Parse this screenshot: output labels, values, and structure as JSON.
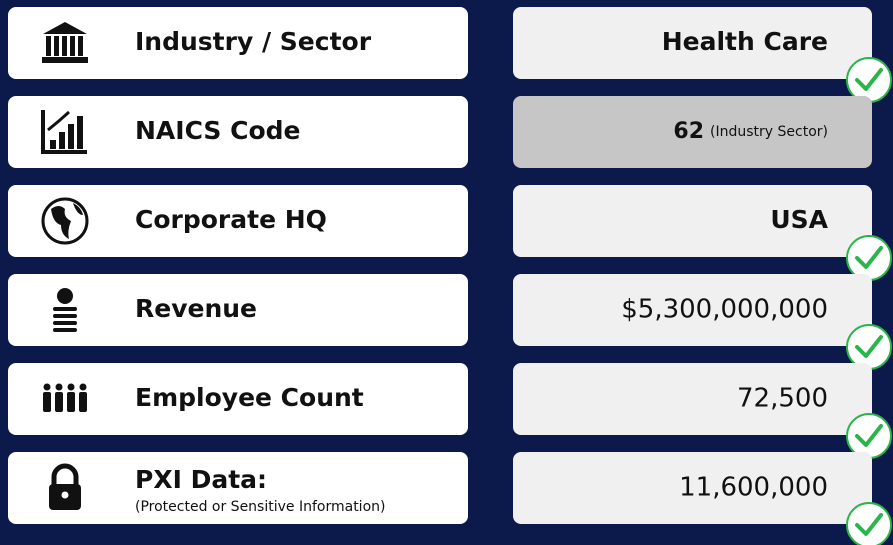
{
  "rows": [
    {
      "label": "Industry / Sector",
      "value": "Health Care"
    },
    {
      "label": "NAICS Code",
      "value": "62",
      "value_note": "(Industry Sector)"
    },
    {
      "label": "Corporate HQ",
      "value": "USA"
    },
    {
      "label": "Revenue",
      "value": "$5,300,000,000"
    },
    {
      "label": "Employee Count",
      "value": "72,500"
    },
    {
      "label": "PXI Data:",
      "sublabel": "(Protected or Sensitive Information)",
      "value": "11,600,000"
    }
  ]
}
